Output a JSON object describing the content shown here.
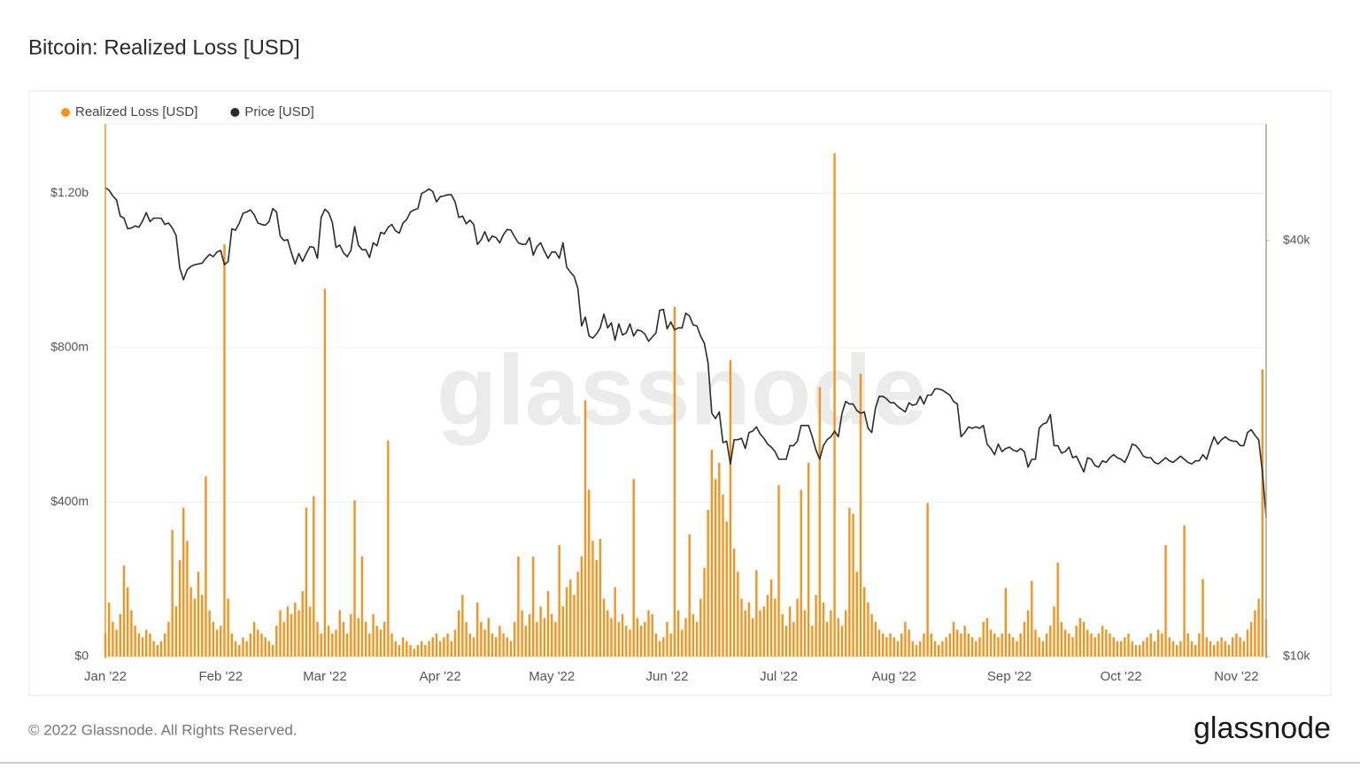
{
  "title": "Bitcoin: Realized Loss [USD]",
  "footer": "© 2022 Glassnode. All Rights Reserved.",
  "logo": "glassnode",
  "watermark": "glassnode",
  "chart_data": {
    "type": "combo",
    "legend": "top-left",
    "grid": true,
    "categories": [
      "Jan '22",
      null,
      null,
      null,
      null,
      null,
      null,
      null,
      null,
      null,
      null,
      null,
      null,
      null,
      null,
      null,
      null,
      null,
      null,
      null,
      null,
      null,
      null,
      null,
      null,
      null,
      null,
      null,
      null,
      null,
      null,
      "Feb '22",
      null,
      null,
      null,
      null,
      null,
      null,
      null,
      null,
      null,
      null,
      null,
      null,
      null,
      null,
      null,
      null,
      null,
      null,
      null,
      null,
      null,
      null,
      null,
      null,
      null,
      null,
      null,
      "Mar '22",
      null,
      null,
      null,
      null,
      null,
      null,
      null,
      null,
      null,
      null,
      null,
      null,
      null,
      null,
      null,
      null,
      null,
      null,
      null,
      null,
      null,
      null,
      null,
      null,
      null,
      null,
      null,
      null,
      null,
      null,
      "Apr '22",
      null,
      null,
      null,
      null,
      null,
      null,
      null,
      null,
      null,
      null,
      null,
      null,
      null,
      null,
      null,
      null,
      null,
      null,
      null,
      null,
      null,
      null,
      null,
      null,
      null,
      null,
      null,
      null,
      null,
      "May '22",
      null,
      null,
      null,
      null,
      null,
      null,
      null,
      null,
      null,
      null,
      null,
      null,
      null,
      null,
      null,
      null,
      null,
      null,
      null,
      null,
      null,
      null,
      null,
      null,
      null,
      null,
      null,
      null,
      null,
      null,
      "Jun '22",
      null,
      null,
      null,
      null,
      null,
      null,
      null,
      null,
      null,
      null,
      null,
      null,
      null,
      null,
      null,
      null,
      null,
      null,
      null,
      null,
      null,
      null,
      null,
      null,
      null,
      null,
      null,
      null,
      null,
      "Jul '22",
      null,
      null,
      null,
      null,
      null,
      null,
      null,
      null,
      null,
      null,
      null,
      null,
      null,
      null,
      null,
      null,
      null,
      null,
      null,
      null,
      null,
      null,
      null,
      null,
      null,
      null,
      null,
      null,
      null,
      null,
      "Aug '22",
      null,
      null,
      null,
      null,
      null,
      null,
      null,
      null,
      null,
      null,
      null,
      null,
      null,
      null,
      null,
      null,
      null,
      null,
      null,
      null,
      null,
      null,
      null,
      null,
      null,
      null,
      null,
      null,
      null,
      null,
      "Sep '22",
      null,
      null,
      null,
      null,
      null,
      null,
      null,
      null,
      null,
      null,
      null,
      null,
      null,
      null,
      null,
      null,
      null,
      null,
      null,
      null,
      null,
      null,
      null,
      null,
      null,
      null,
      null,
      null,
      null,
      "Oct '22",
      null,
      null,
      null,
      null,
      null,
      null,
      null,
      null,
      null,
      null,
      null,
      null,
      null,
      null,
      null,
      null,
      null,
      null,
      null,
      null,
      null,
      null,
      null,
      null,
      null,
      null,
      null,
      null,
      null,
      null,
      "Nov '22",
      null,
      null,
      null,
      null,
      null,
      null,
      null,
      null
    ],
    "ylim": [
      0,
      1380
    ],
    "yticks": [
      {
        "value": 0,
        "label": "$0"
      },
      {
        "value": 400,
        "label": "$400m"
      },
      {
        "value": 800,
        "label": "$800m"
      },
      {
        "value": 1200,
        "label": "$1.20b"
      }
    ],
    "y2lim": [
      10,
      59
    ],
    "y2scale": "log",
    "y2ticks": [
      {
        "value": 10,
        "label": "$10k"
      },
      {
        "value": 40,
        "label": "$40k"
      }
    ],
    "series": [
      {
        "name": "Realized Loss [USD]",
        "type": "bar",
        "axis": "y",
        "color": "#f7931a",
        "values": [
          60,
          140,
          90,
          70,
          110,
          236,
          180,
          120,
          80,
          60,
          50,
          70,
          60,
          40,
          30,
          40,
          60,
          90,
          328,
          130,
          250,
          386,
          300,
          180,
          150,
          220,
          160,
          467,
          120,
          90,
          70,
          80,
          1068,
          150,
          60,
          40,
          30,
          50,
          40,
          60,
          90,
          70,
          60,
          50,
          40,
          30,
          80,
          120,
          90,
          130,
          110,
          140,
          120,
          170,
          386,
          130,
          416,
          90,
          60,
          953,
          80,
          60,
          70,
          120,
          90,
          60,
          110,
          405,
          100,
          260,
          90,
          60,
          110,
          80,
          70,
          90,
          560,
          60,
          40,
          30,
          50,
          40,
          30,
          20,
          30,
          40,
          30,
          40,
          50,
          60,
          40,
          50,
          60,
          40,
          70,
          120,
          160,
          90,
          60,
          50,
          140,
          90,
          70,
          100,
          60,
          50,
          80,
          60,
          50,
          40,
          90,
          259,
          120,
          80,
          110,
          259,
          90,
          130,
          100,
          170,
          110,
          90,
          289,
          130,
          180,
          200,
          160,
          220,
          260,
          664,
          432,
          300,
          250,
          305,
          150,
          120,
          100,
          180,
          90,
          110,
          80,
          70,
          460,
          100,
          80,
          90,
          120,
          110,
          60,
          40,
          50,
          90,
          60,
          906,
          120,
          70,
          100,
          317,
          110,
          90,
          150,
          230,
          380,
          536,
          460,
          502,
          420,
          350,
          768,
          280,
          220,
          150,
          120,
          140,
          100,
          224,
          120,
          130,
          160,
          200,
          150,
          444,
          110,
          80,
          130,
          90,
          150,
          432,
          120,
          502,
          80,
          160,
          698,
          140,
          90,
          120,
          1304,
          100,
          80,
          120,
          386,
          370,
          220,
          733,
          180,
          140,
          110,
          90,
          70,
          60,
          50,
          60,
          50,
          40,
          60,
          90,
          70,
          40,
          30,
          40,
          60,
          398,
          60,
          40,
          30,
          40,
          50,
          60,
          90,
          70,
          60,
          80,
          60,
          50,
          40,
          50,
          90,
          100,
          70,
          60,
          50,
          60,
          178,
          60,
          50,
          40,
          60,
          90,
          120,
          196,
          70,
          50,
          40,
          60,
          80,
          130,
          243,
          90,
          70,
          60,
          50,
          80,
          100,
          90,
          70,
          60,
          50,
          60,
          80,
          70,
          60,
          50,
          40,
          40,
          50,
          60,
          40,
          30,
          30,
          40,
          50,
          60,
          40,
          70,
          60,
          289,
          50,
          40,
          30,
          40,
          340,
          60,
          40,
          30,
          60,
          201,
          50,
          40,
          30,
          40,
          50,
          40,
          30,
          50,
          60,
          50,
          40,
          70,
          90,
          120,
          150,
          744,
          97
        ]
      },
      {
        "name": "Price [USD]",
        "type": "line",
        "axis": "y2",
        "color": "#2b2b2b",
        "values": [
          47.7,
          47.3,
          46.4,
          45.8,
          43.4,
          43.1,
          41.6,
          41.7,
          42.0,
          41.8,
          42.7,
          43.9,
          42.6,
          43.1,
          43.1,
          43.1,
          42.2,
          42.4,
          41.7,
          40.7,
          36.5,
          35.1,
          36.3,
          36.7,
          36.9,
          37.0,
          37.1,
          37.7,
          38.2,
          37.9,
          38.5,
          38.7,
          36.9,
          37.3,
          41.6,
          41.4,
          42.4,
          43.8,
          44.0,
          44.3,
          43.6,
          42.4,
          42.2,
          42.1,
          42.6,
          44.5,
          44.0,
          40.6,
          40.0,
          40.1,
          38.4,
          37.0,
          38.3,
          37.3,
          38.3,
          39.2,
          39.1,
          37.7,
          43.2,
          44.4,
          43.9,
          42.5,
          39.1,
          39.4,
          38.4,
          37.9,
          38.7,
          41.9,
          39.4,
          38.8,
          38.8,
          37.8,
          39.7,
          39.3,
          41.1,
          40.9,
          41.8,
          42.2,
          41.3,
          41.0,
          42.4,
          42.9,
          44.0,
          44.3,
          44.5,
          46.8,
          47.1,
          47.5,
          47.1,
          45.5,
          46.3,
          46.4,
          46.6,
          46.6,
          45.5,
          43.2,
          43.4,
          42.3,
          42.8,
          42.2,
          39.5,
          40.1,
          41.2,
          39.9,
          40.6,
          40.4,
          39.7,
          40.8,
          41.5,
          41.4,
          40.5,
          39.7,
          39.5,
          39.5,
          40.4,
          38.1,
          39.2,
          39.7,
          38.6,
          37.7,
          38.5,
          38.5,
          37.7,
          39.7,
          36.6,
          36.0,
          35.5,
          34.1,
          30.1,
          31.0,
          29.1,
          28.9,
          29.3,
          29.9,
          31.3,
          29.9,
          30.4,
          28.7,
          30.3,
          29.2,
          29.4,
          30.3,
          29.1,
          29.7,
          29.6,
          29.3,
          28.6,
          29.0,
          29.4,
          31.7,
          31.8,
          29.8,
          30.5,
          29.7,
          29.9,
          29.9,
          31.4,
          31.1,
          30.2,
          30.1,
          29.1,
          28.4,
          26.6,
          22.5,
          22.1,
          22.6,
          20.4,
          20.5,
          19.0,
          20.6,
          20.6,
          20.7,
          20.0,
          21.1,
          21.2,
          21.5,
          21.0,
          20.7,
          20.3,
          20.1,
          19.8,
          19.3,
          19.3,
          19.3,
          20.2,
          20.2,
          20.5,
          21.6,
          21.6,
          21.6,
          20.8,
          19.9,
          19.3,
          20.2,
          20.6,
          20.8,
          21.2,
          20.8,
          22.5,
          23.4,
          23.2,
          23.2,
          22.7,
          22.5,
          22.6,
          21.4,
          21.1,
          22.9,
          23.8,
          23.8,
          23.6,
          23.3,
          23.3,
          23.0,
          22.8,
          22.6,
          23.3,
          23.1,
          23.2,
          23.8,
          23.2,
          23.9,
          23.9,
          24.4,
          24.4,
          24.3,
          24.1,
          23.9,
          23.4,
          23.2,
          20.8,
          21.1,
          21.5,
          21.4,
          21.5,
          21.4,
          21.6,
          20.3,
          20.0,
          19.6,
          20.3,
          19.8,
          20.0,
          20.1,
          19.9,
          19.8,
          20.0,
          19.8,
          18.8,
          19.3,
          19.3,
          21.4,
          21.7,
          21.8,
          22.4,
          20.2,
          20.2,
          19.7,
          19.8,
          20.1,
          19.4,
          19.5,
          19.0,
          18.5,
          19.4,
          19.3,
          18.9,
          18.8,
          19.2,
          19.1,
          19.4,
          19.6,
          19.4,
          19.3,
          19.1,
          19.6,
          20.3,
          20.2,
          19.9,
          19.5,
          19.4,
          19.4,
          19.1,
          19.0,
          19.2,
          19.4,
          19.2,
          19.1,
          19.3,
          19.5,
          19.3,
          19.1,
          19.0,
          19.2,
          19.2,
          19.6,
          19.3,
          20.1,
          20.8,
          20.3,
          20.6,
          20.8,
          20.6,
          20.5,
          20.5,
          20.2,
          20.2,
          21.1,
          21.3,
          20.9,
          20.6,
          18.5,
          15.9
        ]
      }
    ]
  }
}
